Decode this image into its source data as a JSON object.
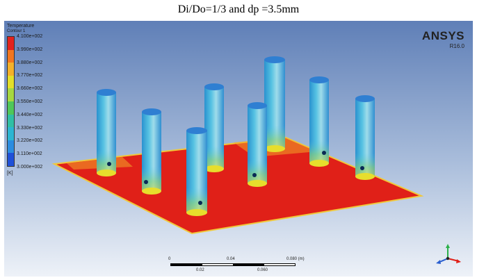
{
  "caption": "Di/Do=1/3 and dp =3.5mm",
  "legend": {
    "title": "Temperature",
    "subtitle": "Contour 1",
    "labels": [
      "4.100e+002",
      "3.990e+002",
      "3.880e+002",
      "3.770e+002",
      "3.660e+002",
      "3.550e+002",
      "3.440e+002",
      "3.330e+002",
      "3.220e+002",
      "3.110e+002",
      "3.000e+002"
    ],
    "unit": "[K]",
    "colors": [
      "#e3221c",
      "#f2761f",
      "#f3b12a",
      "#e3df2a",
      "#a6d842",
      "#4fc75a",
      "#2fbfa5",
      "#2bb5d2",
      "#2a8ce0",
      "#1e50d8"
    ]
  },
  "brand": {
    "name": "ANSYS",
    "version": "R16.0"
  },
  "scale_bar": {
    "top_labels": [
      "0",
      "0.04",
      "0.080 (m)"
    ],
    "bottom_labels": [
      "0.02",
      "0.060"
    ]
  },
  "colors": {
    "plate": "#e02018",
    "plate_edge": "#f3d23a",
    "pin": "#35a6d6",
    "pin_light": "#7ed3e8",
    "pin_top": "#2f86d4",
    "pin_warm": "#b9d84a"
  }
}
